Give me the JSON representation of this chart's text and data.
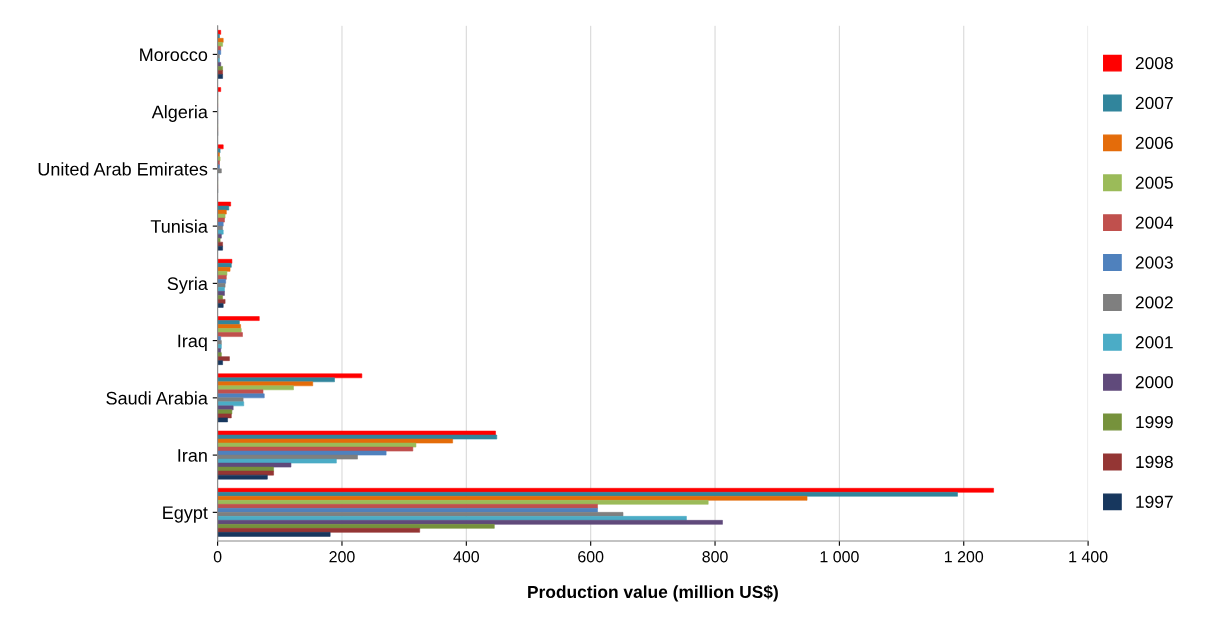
{
  "chart_data": {
    "type": "bar",
    "orientation": "horizontal",
    "xlabel": "Production value (million US$)",
    "categories": [
      "Morocco",
      "Algeria",
      "United Arab Emirates",
      "Tunisia",
      "Syria",
      "Iraq",
      "Saudi Arabia",
      "Iran",
      "Egypt"
    ],
    "series": [
      {
        "name": "2008",
        "color": "#ff0000",
        "values": [
          5,
          5,
          9,
          21,
          23,
          67,
          232,
          447,
          1248
        ]
      },
      {
        "name": "2007",
        "color": "#31859c",
        "values": [
          3,
          0,
          4,
          18,
          22,
          35,
          188,
          449,
          1190
        ]
      },
      {
        "name": "2006",
        "color": "#e46c0a",
        "values": [
          9,
          0,
          3,
          14,
          20,
          37,
          153,
          378,
          948
        ]
      },
      {
        "name": "2005",
        "color": "#9bbb59",
        "values": [
          8,
          0,
          4,
          12,
          15,
          38,
          122,
          319,
          789
        ]
      },
      {
        "name": "2004",
        "color": "#c0504d",
        "values": [
          5,
          0,
          3,
          11,
          14,
          40,
          73,
          314,
          611
        ]
      },
      {
        "name": "2003",
        "color": "#4f81bd",
        "values": [
          5,
          0,
          3,
          9,
          13,
          5,
          75,
          271,
          611
        ]
      },
      {
        "name": "2002",
        "color": "#7f7f7f",
        "values": [
          3,
          0,
          6,
          8,
          12,
          6,
          41,
          225,
          652
        ]
      },
      {
        "name": "2001",
        "color": "#4bacc6",
        "values": [
          3,
          0,
          0,
          9,
          11,
          6,
          42,
          191,
          754
        ]
      },
      {
        "name": "2000",
        "color": "#604a7b",
        "values": [
          5,
          0,
          0,
          6,
          11,
          5,
          25,
          118,
          812
        ]
      },
      {
        "name": "1999",
        "color": "#76923c",
        "values": [
          8,
          0,
          0,
          4,
          8,
          6,
          23,
          90,
          445
        ]
      },
      {
        "name": "1998",
        "color": "#943634",
        "values": [
          8,
          0,
          0,
          8,
          12,
          19,
          22,
          90,
          325
        ]
      },
      {
        "name": "1997",
        "color": "#17375e",
        "values": [
          8,
          0,
          0,
          8,
          9,
          8,
          16,
          80,
          181
        ]
      }
    ],
    "xlim": [
      0,
      1400
    ],
    "xticks": [
      0,
      200,
      400,
      600,
      800,
      {
        "value": 1000,
        "label": "1 000"
      },
      {
        "value": 1200,
        "label": "1 200"
      },
      {
        "value": 1400,
        "label": "1 400"
      }
    ],
    "grid": "x",
    "legend": "right"
  }
}
